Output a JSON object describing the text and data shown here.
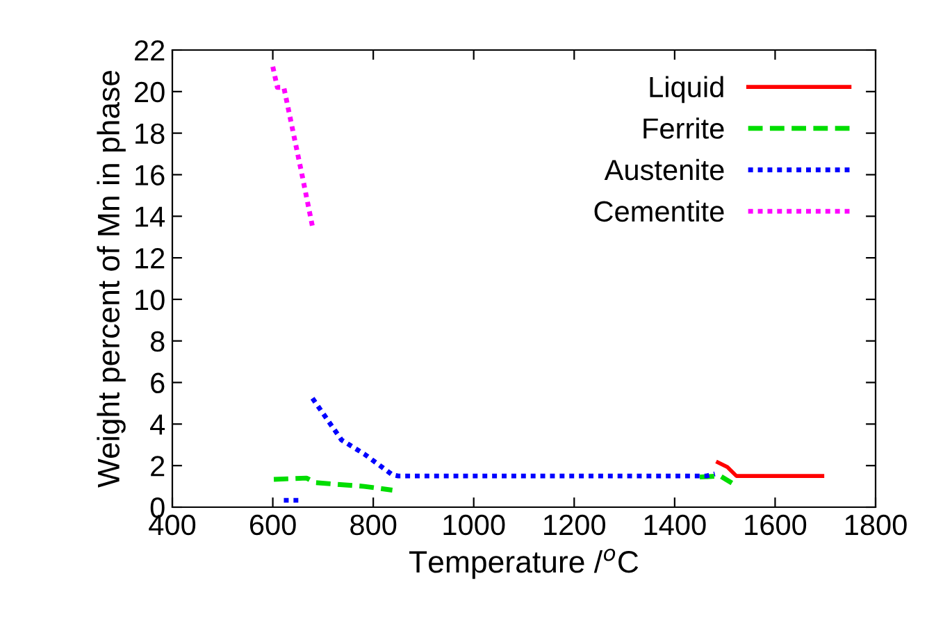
{
  "chart_data": {
    "type": "line",
    "xlabel": "Temperature /$^{o}$C",
    "ylabel": "Weight percent of Mn in phase",
    "xlim": [
      400,
      1800
    ],
    "xticks": [
      400,
      600,
      800,
      1000,
      1200,
      1400,
      1600,
      1800
    ],
    "ylim": [
      0,
      22
    ],
    "yticks": [
      0,
      2,
      4,
      6,
      8,
      10,
      12,
      14,
      16,
      18,
      20,
      22
    ],
    "grid": false,
    "legend": "top right",
    "marker": "none",
    "series": [
      {
        "name": "Liquid",
        "color": "#ff0000",
        "line_style": "solid",
        "x": [
          1486,
          1505,
          1523,
          1600,
          1694
        ],
        "values": [
          2.16,
          1.93,
          1.5,
          1.5,
          1.5
        ]
      },
      {
        "name": "Ferrite",
        "color": "#00dd00",
        "line_style": "dashed",
        "x": [
          602,
          667,
          685,
          782,
          838,
          null,
          1450,
          1491,
          1514
        ],
        "values": [
          1.34,
          1.4,
          1.18,
          1.0,
          0.82,
          null,
          1.45,
          1.5,
          1.16
        ]
      },
      {
        "name": "Austenite",
        "color": "#0000ff",
        "line_style": "dotted",
        "x": [
          622,
          659,
          null,
          679,
          737,
          782,
          838,
          850,
          1200,
          1463,
          1480
        ],
        "values": [
          0.33,
          0.33,
          null,
          5.24,
          3.23,
          2.56,
          1.56,
          1.5,
          1.5,
          1.5,
          1.6
        ]
      },
      {
        "name": "Cementite",
        "color": "#ff00ff",
        "line_style": "dotted",
        "x": [
          600,
          609,
          622,
          659,
          679
        ],
        "values": [
          21.2,
          20.2,
          20.2,
          15.9,
          13.5
        ]
      }
    ]
  }
}
